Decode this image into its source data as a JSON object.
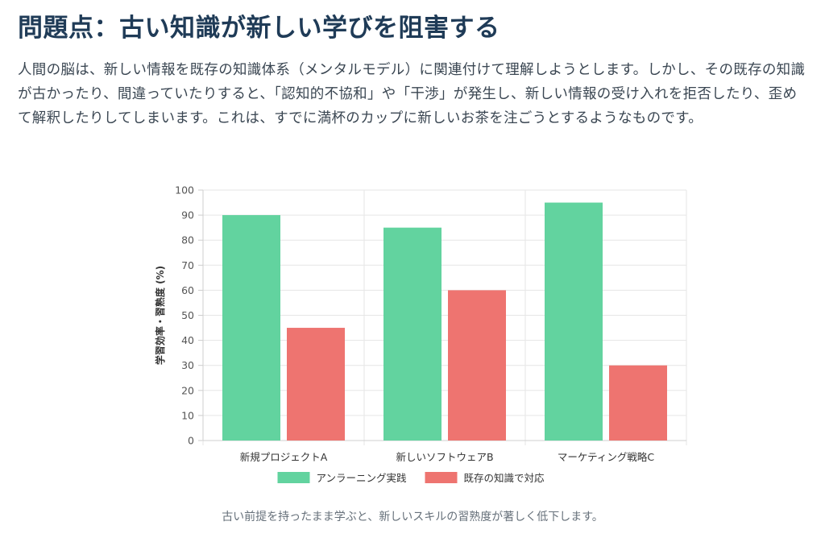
{
  "heading": "問題点：古い知識が新しい学びを阻害する",
  "paragraph": "人間の脳は、新しい情報を既存の知識体系（メンタルモデル）に関連付けて理解しようとします。しかし、その既存の知識が古かったり、間違っていたりすると、「認知的不協和」や「干渉」が発生し、新しい情報の受け入れを拒否したり、歪めて解釈したりしてしまいます。これは、すでに満杯のカップに新しいお茶を注ごうとするようなものです。",
  "caption": "古い前提を持ったまま学ぶと、新しいスキルの習熟度が著しく低下します。",
  "chart_data": {
    "type": "bar",
    "title": "",
    "xlabel": "",
    "ylabel": "学習効率・習熟度 (%)",
    "ylim": [
      0,
      100
    ],
    "yticks": [
      0,
      10,
      20,
      30,
      40,
      50,
      60,
      70,
      80,
      90,
      100
    ],
    "categories": [
      "新規プロジェクトA",
      "新しいソフトウェアB",
      "マーケティング戦略C"
    ],
    "series": [
      {
        "name": "アンラーニング実践",
        "values": [
          90,
          85,
          95
        ],
        "color": "#62d39f"
      },
      {
        "name": "既存の知識で対応",
        "values": [
          45,
          60,
          30
        ],
        "color": "#ee7470"
      }
    ],
    "grid": true,
    "legend_position": "bottom"
  }
}
